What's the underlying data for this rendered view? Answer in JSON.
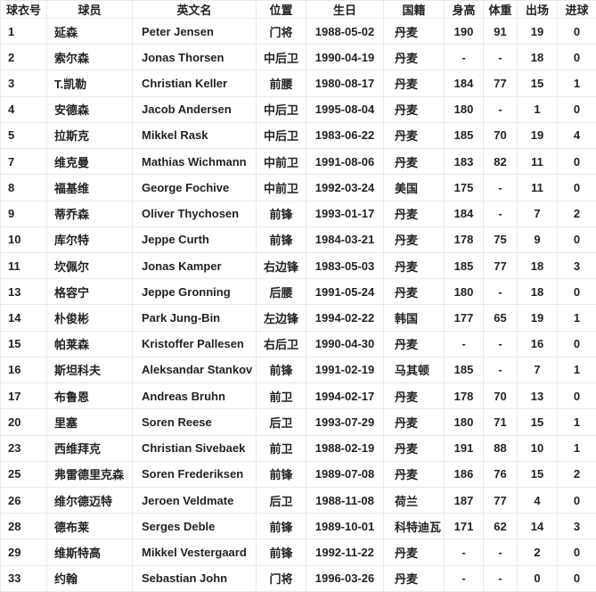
{
  "table": {
    "columns": [
      {
        "key": "jersey",
        "label": "球衣号"
      },
      {
        "key": "name",
        "label": "球员"
      },
      {
        "key": "en_name",
        "label": "英文名"
      },
      {
        "key": "position",
        "label": "位置"
      },
      {
        "key": "birthday",
        "label": "生日"
      },
      {
        "key": "nation",
        "label": "国籍"
      },
      {
        "key": "height",
        "label": "身高"
      },
      {
        "key": "weight",
        "label": "体重"
      },
      {
        "key": "apps",
        "label": "出场"
      },
      {
        "key": "goals",
        "label": "进球"
      }
    ],
    "rows": [
      [
        "1",
        "延森",
        "Peter Jensen",
        "门将",
        "1988-05-02",
        "丹麦",
        "190",
        "91",
        "19",
        "0"
      ],
      [
        "2",
        "索尔森",
        "Jonas Thorsen",
        "中后卫",
        "1990-04-19",
        "丹麦",
        "-",
        "-",
        "18",
        "0"
      ],
      [
        "3",
        "T.凯勒",
        "Christian Keller",
        "前腰",
        "1980-08-17",
        "丹麦",
        "184",
        "77",
        "15",
        "1"
      ],
      [
        "4",
        "安德森",
        "Jacob Andersen",
        "中后卫",
        "1995-08-04",
        "丹麦",
        "180",
        "-",
        "1",
        "0"
      ],
      [
        "5",
        "拉斯克",
        "Mikkel Rask",
        "中后卫",
        "1983-06-22",
        "丹麦",
        "185",
        "70",
        "19",
        "4"
      ],
      [
        "7",
        "维克曼",
        "Mathias Wichmann",
        "中前卫",
        "1991-08-06",
        "丹麦",
        "183",
        "82",
        "11",
        "0"
      ],
      [
        "8",
        "福基维",
        "George Fochive",
        "中前卫",
        "1992-03-24",
        "美国",
        "175",
        "-",
        "11",
        "0"
      ],
      [
        "9",
        "蒂乔森",
        "Oliver Thychosen",
        "前锋",
        "1993-01-17",
        "丹麦",
        "184",
        "-",
        "7",
        "2"
      ],
      [
        "10",
        "库尔特",
        "Jeppe Curth",
        "前锋",
        "1984-03-21",
        "丹麦",
        "178",
        "75",
        "9",
        "0"
      ],
      [
        "11",
        "坎佩尔",
        "Jonas Kamper",
        "右边锋",
        "1983-05-03",
        "丹麦",
        "185",
        "77",
        "18",
        "3"
      ],
      [
        "13",
        "格容宁",
        "Jeppe Gronning",
        "后腰",
        "1991-05-24",
        "丹麦",
        "180",
        "-",
        "18",
        "0"
      ],
      [
        "14",
        "朴俊彬",
        "Park Jung-Bin",
        "左边锋",
        "1994-02-22",
        "韩国",
        "177",
        "65",
        "19",
        "1"
      ],
      [
        "15",
        "帕莱森",
        "Kristoffer Pallesen",
        "右后卫",
        "1990-04-30",
        "丹麦",
        "-",
        "-",
        "16",
        "0"
      ],
      [
        "16",
        "斯坦科夫",
        "Aleksandar Stankov",
        "前锋",
        "1991-02-19",
        "马其顿",
        "185",
        "-",
        "7",
        "1"
      ],
      [
        "17",
        "布鲁恩",
        "Andreas Bruhn",
        "前卫",
        "1994-02-17",
        "丹麦",
        "178",
        "70",
        "13",
        "0"
      ],
      [
        "20",
        "里塞",
        "Soren Reese",
        "后卫",
        "1993-07-29",
        "丹麦",
        "180",
        "71",
        "15",
        "1"
      ],
      [
        "23",
        "西维拜克",
        "Christian Sivebaek",
        "前卫",
        "1988-02-19",
        "丹麦",
        "191",
        "88",
        "10",
        "1"
      ],
      [
        "25",
        "弗雷德里克森",
        "Soren Frederiksen",
        "前锋",
        "1989-07-08",
        "丹麦",
        "186",
        "76",
        "15",
        "2"
      ],
      [
        "26",
        "维尔德迈特",
        "Jeroen Veldmate",
        "后卫",
        "1988-11-08",
        "荷兰",
        "187",
        "77",
        "4",
        "0"
      ],
      [
        "28",
        "德布莱",
        "Serges Deble",
        "前锋",
        "1989-10-01",
        "科特迪瓦",
        "171",
        "62",
        "14",
        "3"
      ],
      [
        "29",
        "维斯特高",
        "Mikkel Vestergaard",
        "前锋",
        "1992-11-22",
        "丹麦",
        "-",
        "-",
        "2",
        "0"
      ],
      [
        "33",
        "约翰",
        "Sebastian John",
        "门将",
        "1996-03-26",
        "丹麦",
        "-",
        "-",
        "0",
        "0"
      ]
    ],
    "missing_value_placeholder": "-"
  },
  "colors": {
    "background": "#ffffff",
    "border": "#e9e9e9",
    "text": "#222222"
  }
}
